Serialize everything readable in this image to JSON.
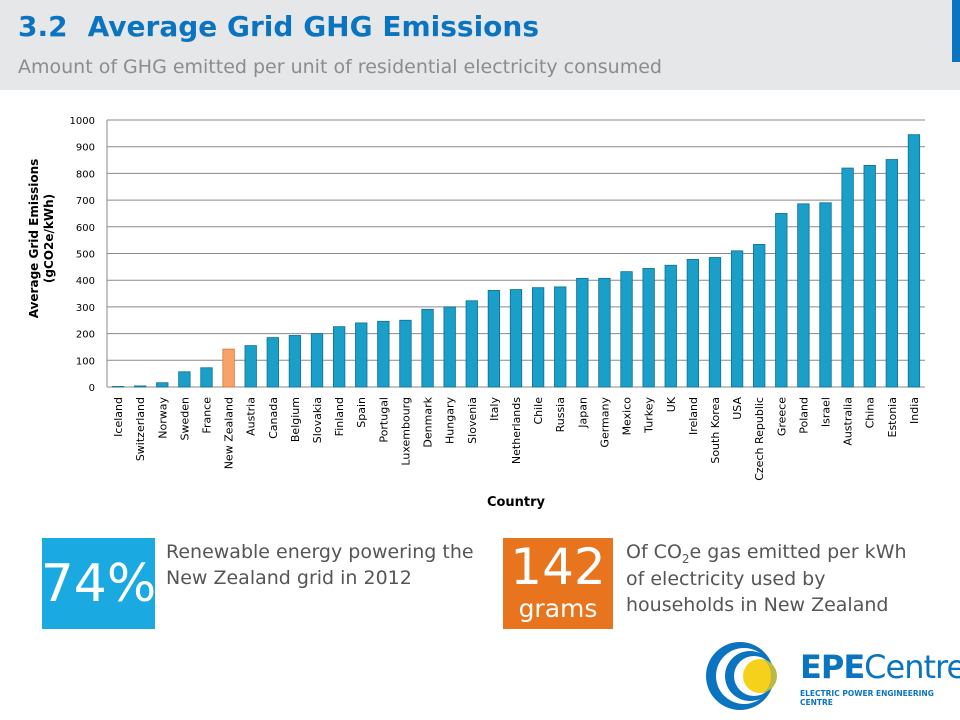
{
  "header": {
    "section_number": "3.2",
    "title": "Average Grid GHG Emissions",
    "subtitle": "Amount of GHG emitted per unit of residential electricity consumed"
  },
  "chart_data": {
    "type": "bar",
    "ylabel_line1": "Average Grid Emissions",
    "ylabel_line2": "(gCO2e/kWh)",
    "xlabel": "Country",
    "ylim": [
      0,
      1000
    ],
    "yticks": [
      0,
      100,
      200,
      300,
      400,
      500,
      600,
      700,
      800,
      900,
      1000
    ],
    "grid": true,
    "bar_color": "#1a9fc9",
    "highlight_color": "#f6a26a",
    "highlight_category": "New Zealand",
    "categories": [
      "Iceland",
      "Switzerland",
      "Norway",
      "Sweden",
      "France",
      "New Zealand",
      "Austria",
      "Canada",
      "Belgium",
      "Slovakia",
      "Finland",
      "Spain",
      "Portugal",
      "Luxembourg",
      "Denmark",
      "Hungary",
      "Slovenia",
      "Italy",
      "Netherlands",
      "Chile",
      "Russia",
      "Japan",
      "Germany",
      "Mexico",
      "Turkey",
      "UK",
      "Ireland",
      "South Korea",
      "USA",
      "Czech Republic",
      "Greece",
      "Poland",
      "Israel",
      "Australia",
      "China",
      "Estonia",
      "India"
    ],
    "values": [
      2,
      4,
      16,
      57,
      72,
      142,
      155,
      185,
      193,
      200,
      226,
      240,
      246,
      250,
      291,
      300,
      323,
      362,
      365,
      372,
      375,
      407,
      407,
      432,
      444,
      456,
      478,
      485,
      510,
      534,
      650,
      686,
      690,
      820,
      830,
      852,
      945
    ]
  },
  "stats": {
    "left": {
      "value": "74%",
      "text": "Renewable energy powering the New Zealand grid in 2012",
      "color": "#1aa9e0"
    },
    "right": {
      "value": "142",
      "unit": "grams",
      "text": "Of CO2e gas emitted per kWh of electricity used by households in New Zealand",
      "color": "#e8741e"
    }
  },
  "logo": {
    "name": "EPECentre",
    "tagline": "ELECTRIC POWER ENGINEERING CENTRE"
  }
}
